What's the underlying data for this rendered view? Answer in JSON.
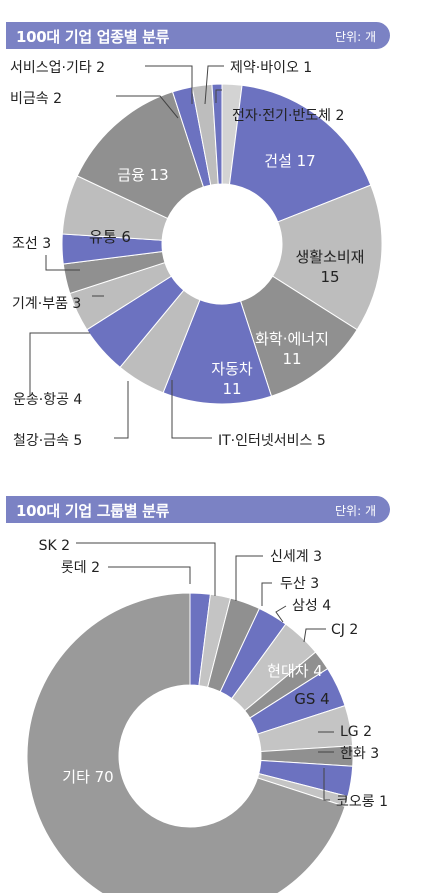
{
  "chart_data": [
    {
      "type": "pie",
      "title": "100대 기업 업종별 분류",
      "unit_label": "단위: 개",
      "categories": [
        "전자·전기·반도체",
        "건설",
        "생활소비재",
        "화학·에너지",
        "자동차",
        "IT·인터넷서비스",
        "철강·금속",
        "운송·항공",
        "기계·부품",
        "조선",
        "유통",
        "금융",
        "비금속",
        "서비스업·기타",
        "제약·바이오"
      ],
      "values": [
        2,
        17,
        15,
        11,
        11,
        5,
        5,
        4,
        3,
        3,
        6,
        13,
        2,
        2,
        1
      ],
      "labels": [
        "전자·전기·반도체 2",
        "건설 17",
        "생활소비재 15",
        "화학·에너지 11",
        "자동차 11",
        "IT·인터넷서비스 5",
        "철강·금속 5",
        "운송·항공 4",
        "기계·부품 3",
        "조선 3",
        "유통 6",
        "금융 13",
        "비금속 2",
        "서비스업·기타 2",
        "제약·바이오 1"
      ],
      "colors": [
        "#d3d3d3",
        "#6c72c0",
        "#bdbdbd",
        "#909090",
        "#6c72c0",
        "#bdbdbd",
        "#6c72c0",
        "#bdbdbd",
        "#909090",
        "#6c72c0",
        "#bdbdbd",
        "#909090",
        "#6c72c0",
        "#bdbdbd",
        "#6c72c0"
      ]
    },
    {
      "type": "pie",
      "title": "100대 기업 그룹별 분류",
      "unit_label": "단위: 개",
      "categories": [
        "롯데",
        "SK",
        "신세계",
        "두산",
        "삼성",
        "CJ",
        "현대차",
        "GS",
        "LG",
        "한화",
        "코오롱",
        "기타"
      ],
      "values": [
        2,
        2,
        3,
        3,
        4,
        2,
        4,
        4,
        2,
        3,
        1,
        70
      ],
      "labels": [
        "롯데 2",
        "SK 2",
        "신세계 3",
        "두산 3",
        "삼성 4",
        "CJ 2",
        "현대차 4",
        "GS 4",
        "LG 2",
        "한화 3",
        "코오롱 1",
        "기타 70"
      ],
      "colors": [
        "#6c72c0",
        "#c4c4c4",
        "#909090",
        "#6c72c0",
        "#c4c4c4",
        "#909090",
        "#6c72c0",
        "#c4c4c4",
        "#909090",
        "#6c72c0",
        "#c4c4c4",
        "#9a9a9a"
      ]
    }
  ]
}
